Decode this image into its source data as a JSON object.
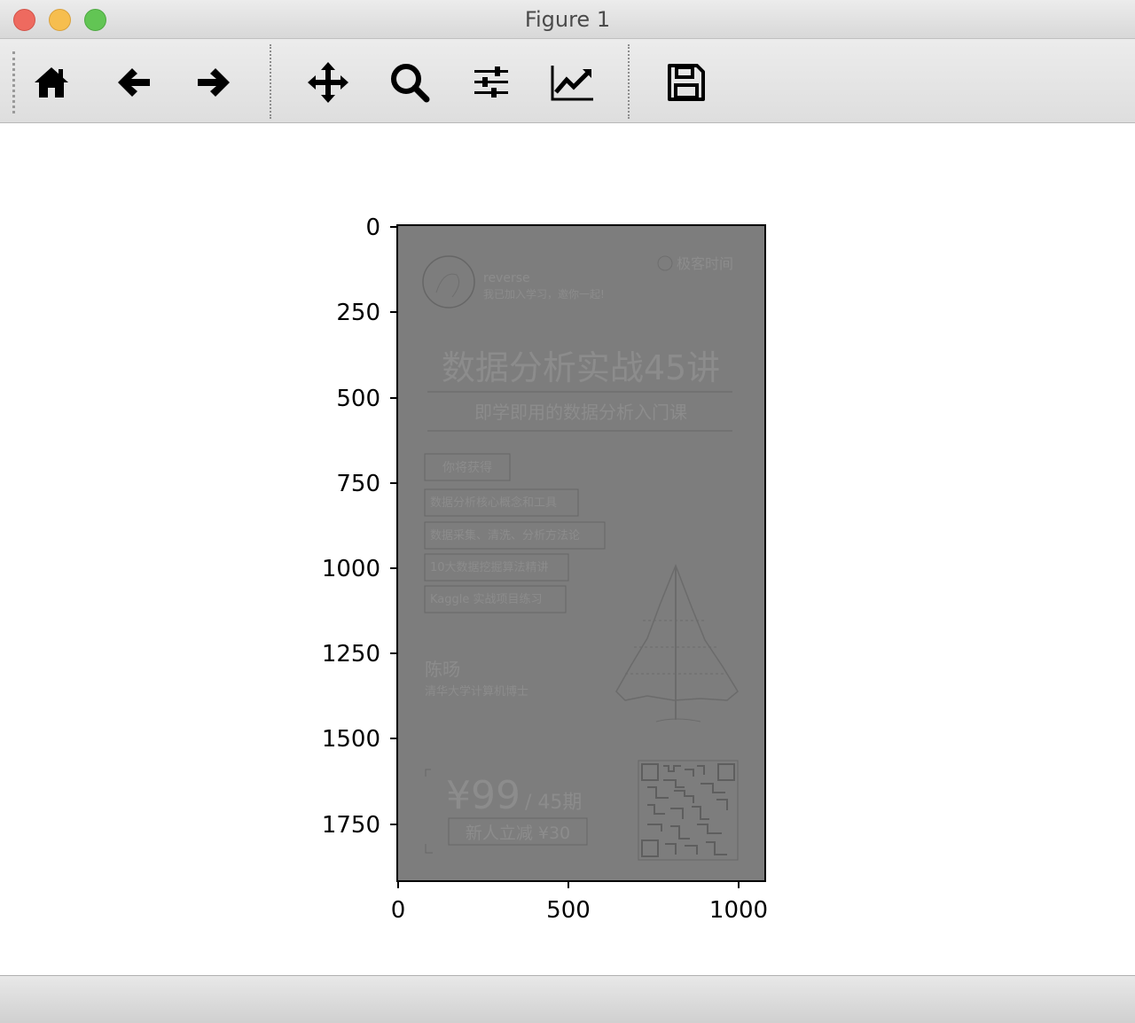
{
  "window": {
    "title": "Figure 1"
  },
  "toolbar": {
    "buttons": [
      {
        "name": "home",
        "icon": "home-icon"
      },
      {
        "name": "back",
        "icon": "arrow-left-icon"
      },
      {
        "name": "forward",
        "icon": "arrow-right-icon"
      },
      {
        "name": "pan",
        "icon": "move-icon"
      },
      {
        "name": "zoom",
        "icon": "search-icon"
      },
      {
        "name": "configure-subplots",
        "icon": "sliders-icon"
      },
      {
        "name": "edit-axes",
        "icon": "line-chart-icon"
      },
      {
        "name": "save",
        "icon": "floppy-disk-icon"
      }
    ]
  },
  "plot": {
    "x_ticks": [
      "0",
      "500",
      "1000"
    ],
    "y_ticks": [
      "0",
      "250",
      "500",
      "750",
      "1000",
      "1250",
      "1500",
      "1750"
    ],
    "image": {
      "brand": "极客时间",
      "user_name": "reverse",
      "user_subtitle": "我已加入学习，邀你一起!",
      "course_title": "数据分析实战45讲",
      "course_subtitle": "即学即用的数据分析入门课",
      "gain_label": "你将获得",
      "gains": [
        "数据分析核心概念和工具",
        "数据采集、清洗、分析方法论",
        "10大数据挖掘算法精讲",
        "Kaggle 实战项目练习"
      ],
      "author_name": "陈旸",
      "author_title": "清华大学计算机博士",
      "price": "¥99",
      "period": "/ 45期",
      "discount": "新人立减 ¥30"
    }
  }
}
